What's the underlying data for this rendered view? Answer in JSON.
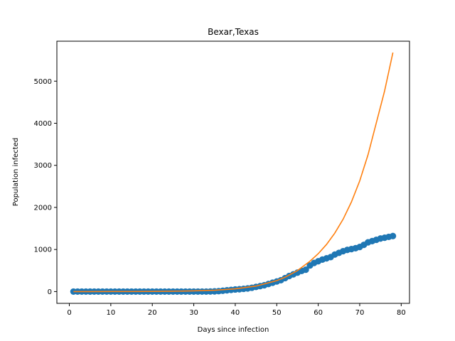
{
  "chart_data": {
    "type": "scatter",
    "title": "Bexar,Texas",
    "xlabel": "Days since infection",
    "ylabel": "Population infected",
    "xlim": [
      -3,
      82
    ],
    "ylim": [
      -280,
      5950
    ],
    "xticks": [
      0,
      10,
      20,
      30,
      40,
      50,
      60,
      70,
      80
    ],
    "yticks": [
      0,
      1000,
      2000,
      3000,
      4000,
      5000
    ],
    "grid": false,
    "series": [
      {
        "kind": "scatter",
        "color": "#1f77b4",
        "x": [
          1,
          2,
          3,
          4,
          5,
          6,
          7,
          8,
          9,
          10,
          11,
          12,
          13,
          14,
          15,
          16,
          17,
          18,
          19,
          20,
          21,
          22,
          23,
          24,
          25,
          26,
          27,
          28,
          29,
          30,
          31,
          32,
          33,
          34,
          35,
          36,
          37,
          38,
          39,
          40,
          41,
          42,
          43,
          44,
          45,
          46,
          47,
          48,
          49,
          50,
          51,
          52,
          53,
          54,
          55,
          56,
          57,
          58,
          59,
          60,
          61,
          62,
          63,
          64,
          65,
          66,
          67,
          68,
          69,
          70,
          71,
          72,
          73,
          74,
          75,
          76,
          77,
          78
        ],
        "y": [
          0,
          0,
          0,
          0,
          0,
          0,
          0,
          0,
          0,
          0,
          0,
          0,
          0,
          0,
          0,
          0,
          0,
          0,
          0,
          0,
          0,
          0,
          0,
          0,
          0,
          0,
          0,
          0,
          0,
          0,
          0,
          0,
          0,
          2,
          5,
          10,
          20,
          30,
          40,
          50,
          55,
          65,
          75,
          90,
          110,
          130,
          150,
          180,
          210,
          240,
          270,
          320,
          370,
          410,
          450,
          490,
          520,
          620,
          680,
          720,
          760,
          790,
          820,
          880,
          920,
          960,
          990,
          1010,
          1030,
          1060,
          1110,
          1170,
          1200,
          1230,
          1260,
          1280,
          1300,
          1320
        ]
      },
      {
        "kind": "line",
        "color": "#ff7f0e",
        "x": [
          1,
          5,
          10,
          15,
          20,
          25,
          30,
          35,
          40,
          45,
          50,
          52,
          55,
          58,
          60,
          62,
          64,
          66,
          68,
          70,
          72,
          74,
          76,
          78
        ],
        "y": [
          0,
          0,
          1,
          2,
          4,
          8,
          16,
          32,
          65,
          130,
          260,
          340,
          500,
          720,
          900,
          1120,
          1390,
          1720,
          2130,
          2630,
          3250,
          4010,
          4770,
          5680
        ]
      }
    ]
  }
}
